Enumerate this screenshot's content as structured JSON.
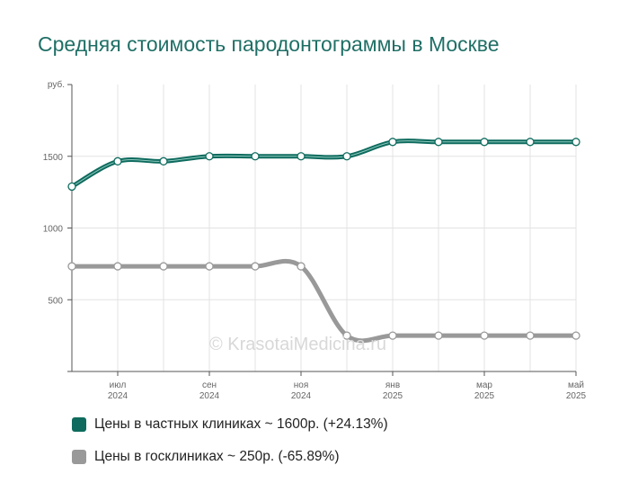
{
  "title": "Средняя стоимость пародонтограммы в Москве",
  "watermark": "© KrasotaiMedicina.ru",
  "legend": [
    {
      "label": "Цены в частных клиниках ~ 1600р. (+24.13%)",
      "color": "#0e6b5e"
    },
    {
      "label": "Цены в госклиниках ~ 250р. (-65.89%)",
      "color": "#999999"
    }
  ],
  "chart_data": {
    "type": "line",
    "ylabel": "руб.",
    "ylim": [
      0,
      2000
    ],
    "yticks": [
      500,
      1000,
      1500
    ],
    "x": [
      "2024-06",
      "2024-07",
      "2024-08",
      "2024-09",
      "2024-10",
      "2024-11",
      "2024-12",
      "2025-01",
      "2025-02",
      "2025-03",
      "2025-04",
      "2025-05"
    ],
    "xtick_labels": [
      {
        "month": "июл",
        "year": "2024"
      },
      {
        "month": "сен",
        "year": "2024"
      },
      {
        "month": "ноя",
        "year": "2024"
      },
      {
        "month": "янв",
        "year": "2025"
      },
      {
        "month": "мар",
        "year": "2025"
      },
      {
        "month": "май",
        "year": "2025"
      }
    ],
    "series": [
      {
        "name": "Цены в частных клиниках ~ 1600р. (+24.13%)",
        "color": "#0e6b5e",
        "values": [
          1289,
          1465,
          1465,
          1500,
          1500,
          1500,
          1500,
          1600,
          1600,
          1600,
          1600,
          1600
        ]
      },
      {
        "name": "Цены в госклиниках ~ 250р. (-65.89%)",
        "color": "#999999",
        "values": [
          733,
          733,
          733,
          733,
          733,
          733,
          250,
          250,
          250,
          250,
          250,
          250
        ]
      }
    ]
  }
}
